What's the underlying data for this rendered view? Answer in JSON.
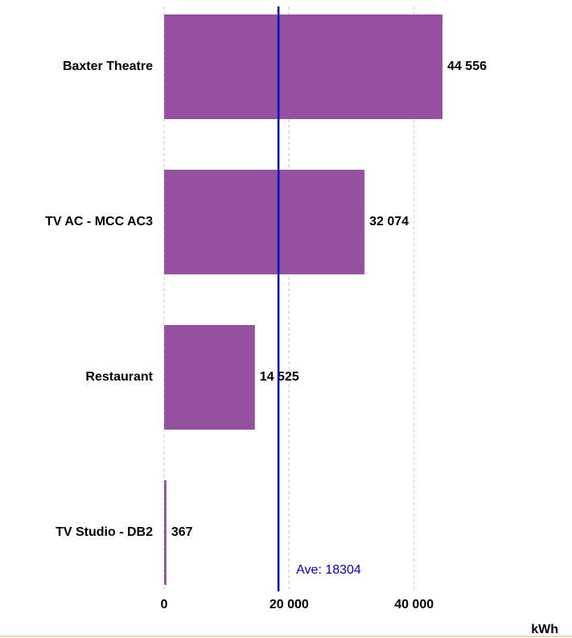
{
  "chart_data": {
    "type": "barh",
    "categories": [
      "Baxter Theatre",
      "TV AC - MCC AC3",
      "Restaurant",
      "TV Studio - DB2"
    ],
    "values": [
      44556,
      32074,
      14525,
      367
    ],
    "value_labels": [
      "44 556",
      "32 074",
      "14 525",
      "367"
    ],
    "color": "#9650a0",
    "xlim": [
      0,
      60000
    ],
    "xticks": [
      0,
      {
        "value": 20000,
        "label": "20 000"
      },
      {
        "value": 40000,
        "label": "40 000"
      }
    ],
    "xlabel": "kWh",
    "grid": true,
    "average": {
      "value": 18304,
      "label": "Ave: 18304",
      "color": "#0000cc"
    }
  }
}
